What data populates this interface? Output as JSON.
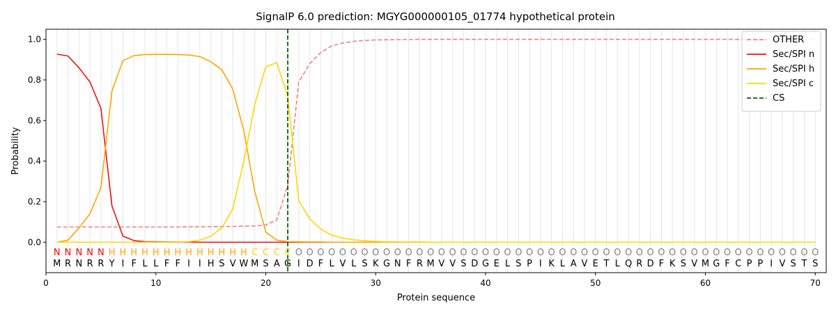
{
  "chart_data": {
    "type": "line",
    "title": "SignalP 6.0 prediction: MGYG000000105_01774 hypothetical protein",
    "xlabel": "Protein sequence",
    "ylabel": "Probability",
    "xlim": [
      0,
      71
    ],
    "ylim": [
      -0.15,
      1.05
    ],
    "x_ticks": [
      0,
      10,
      20,
      30,
      40,
      50,
      60,
      70
    ],
    "y_ticks": [
      0.0,
      0.2,
      0.4,
      0.6,
      0.8,
      1.0
    ],
    "grid": "vertical lines at every residue",
    "legend_position": "top-right",
    "sequence": [
      "M",
      "R",
      "N",
      "R",
      "R",
      "Y",
      "I",
      "F",
      "L",
      "L",
      "F",
      "F",
      "I",
      "I",
      "H",
      "S",
      "V",
      "W",
      "M",
      "S",
      "A",
      "G",
      "I",
      "D",
      "F",
      "L",
      "V",
      "L",
      "S",
      "K",
      "G",
      "N",
      "F",
      "R",
      "M",
      "V",
      "V",
      "S",
      "D",
      "G",
      "E",
      "L",
      "S",
      "P",
      "I",
      "K",
      "L",
      "A",
      "V",
      "E",
      "T",
      "L",
      "Q",
      "R",
      "D",
      "F",
      "K",
      "S",
      "V",
      "M",
      "G",
      "F",
      "C",
      "P",
      "P",
      "I",
      "V",
      "S",
      "T",
      "S"
    ],
    "region_labels": [
      "N",
      "N",
      "N",
      "N",
      "N",
      "H",
      "H",
      "H",
      "H",
      "H",
      "H",
      "H",
      "H",
      "H",
      "H",
      "H",
      "H",
      "H",
      "C",
      "C",
      "C",
      "C",
      "O",
      "O",
      "O",
      "O",
      "O",
      "O",
      "O",
      "O",
      "O",
      "O",
      "O",
      "O",
      "O",
      "O",
      "O",
      "O",
      "O",
      "O",
      "O",
      "O",
      "O",
      "O",
      "O",
      "O",
      "O",
      "O",
      "O",
      "O",
      "O",
      "O",
      "O",
      "O",
      "O",
      "O",
      "O",
      "O",
      "O",
      "O",
      "O",
      "O",
      "O",
      "O",
      "O",
      "O",
      "O",
      "O",
      "O",
      "O"
    ],
    "region_colors": {
      "N": "#ff0000",
      "H": "#ffa500",
      "C": "#ffd700",
      "O": "#808080"
    },
    "cleavage_site": 22,
    "series": [
      {
        "name": "OTHER",
        "color": "#f08080",
        "style": "dashed",
        "values": [
          0.075,
          0.075,
          0.075,
          0.075,
          0.075,
          0.075,
          0.075,
          0.075,
          0.075,
          0.075,
          0.075,
          0.075,
          0.076,
          0.076,
          0.077,
          0.077,
          0.078,
          0.079,
          0.08,
          0.085,
          0.11,
          0.28,
          0.79,
          0.88,
          0.935,
          0.968,
          0.982,
          0.99,
          0.995,
          0.997,
          0.998,
          0.999,
          0.999,
          1.0,
          1.0,
          1.0,
          1.0,
          1.0,
          1.0,
          1.0,
          1.0,
          1.0,
          1.0,
          1.0,
          1.0,
          1.0,
          1.0,
          1.0,
          1.0,
          1.0,
          1.0,
          1.0,
          1.0,
          1.0,
          1.0,
          1.0,
          1.0,
          1.0,
          1.0,
          1.0,
          1.0,
          1.0,
          1.0,
          1.0,
          1.0,
          1.0,
          1.0,
          1.0,
          1.0,
          1.0
        ]
      },
      {
        "name": "Sec/SPI n",
        "color": "#ee1111",
        "style": "solid",
        "values": [
          0.927,
          0.918,
          0.86,
          0.79,
          0.66,
          0.18,
          0.03,
          0.008,
          0.003,
          0.002,
          0.001,
          0.001,
          0.001,
          0.0,
          0.0,
          0.0,
          0.0,
          0.0,
          0.0,
          0.0,
          0.0,
          0.0,
          0.0,
          0.0,
          0.0,
          0.0,
          0.0,
          0.0,
          0.0,
          0.0,
          0.0,
          0.0,
          0.0,
          0.0,
          0.0,
          0.0,
          0.0,
          0.0,
          0.0,
          0.0,
          0.0,
          0.0,
          0.0,
          0.0,
          0.0,
          0.0,
          0.0,
          0.0,
          0.0,
          0.0,
          0.0,
          0.0,
          0.0,
          0.0,
          0.0,
          0.0,
          0.0,
          0.0,
          0.0,
          0.0,
          0.0,
          0.0,
          0.0,
          0.0,
          0.0,
          0.0,
          0.0,
          0.0,
          0.0,
          0.0
        ]
      },
      {
        "name": "Sec/SPI h",
        "color": "#ffa500",
        "style": "solid",
        "values": [
          0.0,
          0.01,
          0.07,
          0.14,
          0.27,
          0.745,
          0.895,
          0.92,
          0.925,
          0.926,
          0.926,
          0.925,
          0.923,
          0.915,
          0.89,
          0.85,
          0.755,
          0.55,
          0.25,
          0.05,
          0.01,
          0.003,
          0.002,
          0.001,
          0.001,
          0.0,
          0.0,
          0.0,
          0.0,
          0.0,
          0.0,
          0.0,
          0.0,
          0.0,
          0.0,
          0.0,
          0.0,
          0.0,
          0.0,
          0.0,
          0.0,
          0.0,
          0.0,
          0.0,
          0.0,
          0.0,
          0.0,
          0.0,
          0.0,
          0.0,
          0.0,
          0.0,
          0.0,
          0.0,
          0.0,
          0.0,
          0.0,
          0.0,
          0.0,
          0.0,
          0.0,
          0.0,
          0.0,
          0.0,
          0.0,
          0.0,
          0.0,
          0.0,
          0.0,
          0.0
        ]
      },
      {
        "name": "Sec/SPI c",
        "color": "#ffd700",
        "style": "solid",
        "values": [
          0.0,
          0.0,
          0.0,
          0.0,
          0.0,
          0.0,
          0.0,
          0.0,
          0.0,
          0.0,
          0.0,
          0.001,
          0.003,
          0.01,
          0.03,
          0.07,
          0.165,
          0.4,
          0.68,
          0.865,
          0.885,
          0.72,
          0.205,
          0.115,
          0.065,
          0.035,
          0.02,
          0.012,
          0.007,
          0.004,
          0.002,
          0.001,
          0.001,
          0.001,
          0.0,
          0.0,
          0.0,
          0.0,
          0.0,
          0.0,
          0.0,
          0.0,
          0.0,
          0.0,
          0.0,
          0.0,
          0.0,
          0.0,
          0.0,
          0.0,
          0.0,
          0.0,
          0.0,
          0.0,
          0.0,
          0.0,
          0.0,
          0.0,
          0.0,
          0.0,
          0.0,
          0.0,
          0.0,
          0.0,
          0.0,
          0.0,
          0.0,
          0.0,
          0.0,
          0.0
        ]
      }
    ],
    "cs_legend": {
      "name": "CS",
      "color": "#006400",
      "style": "dashed"
    }
  }
}
